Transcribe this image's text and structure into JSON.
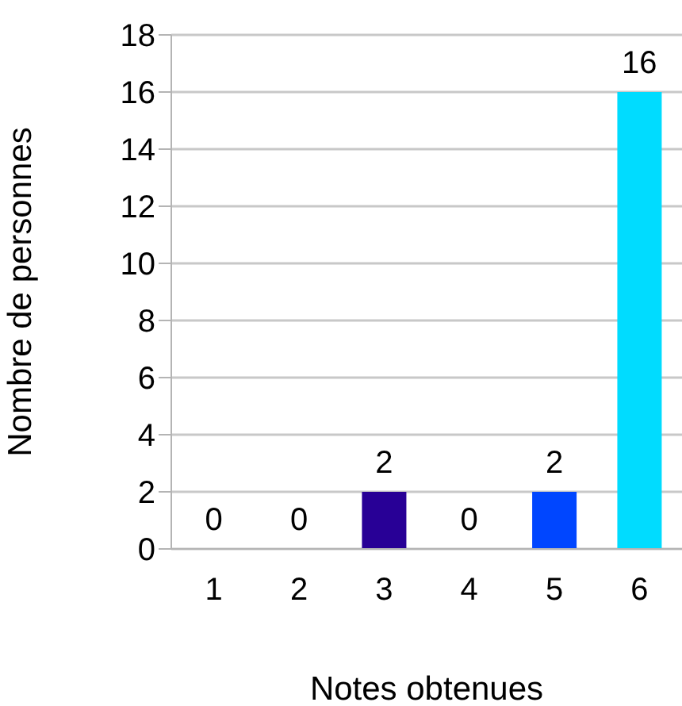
{
  "chart_data": {
    "type": "bar",
    "xlabel": "Notes obtenues",
    "ylabel": "Nombre de personnes",
    "categories": [
      "1",
      "2",
      "3",
      "4",
      "5",
      "6"
    ],
    "values": [
      0,
      0,
      2,
      0,
      2,
      16
    ],
    "colors": [
      "#280096",
      "#280096",
      "#280096",
      "#0046ff",
      "#0046ff",
      "#00dcff"
    ],
    "ylim": [
      0,
      18
    ],
    "yticks": [
      0,
      2,
      4,
      6,
      8,
      10,
      12,
      14,
      16,
      18
    ],
    "grid": "y",
    "data_labels": true
  }
}
